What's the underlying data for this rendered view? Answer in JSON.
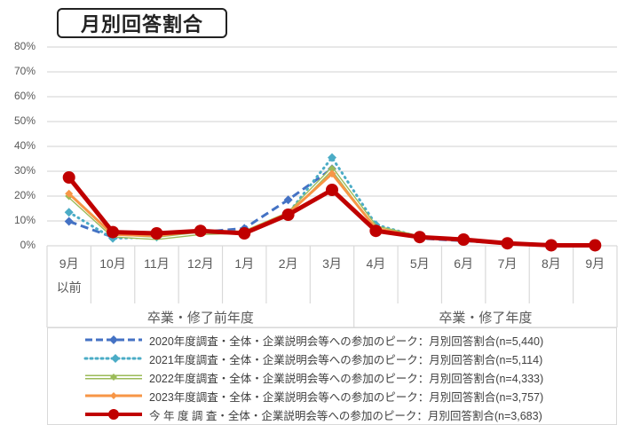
{
  "title": "月別回答割合",
  "chart_data": {
    "type": "line",
    "title": "月別回答割合",
    "xlabel": "",
    "ylabel": "",
    "ylim": [
      0,
      80
    ],
    "yticks": [
      "0%",
      "10%",
      "20%",
      "30%",
      "40%",
      "50%",
      "60%",
      "70%",
      "80%"
    ],
    "grid": true,
    "legend_position": "bottom",
    "categories": [
      "9月以前",
      "10月",
      "11月",
      "12月",
      "1月",
      "2月",
      "3月",
      "4月",
      "5月",
      "6月",
      "7月",
      "8月",
      "9月"
    ],
    "category_labels": [
      [
        "9月",
        "以前"
      ],
      [
        "10月"
      ],
      [
        "11月"
      ],
      [
        "12月"
      ],
      [
        "1月"
      ],
      [
        "2月"
      ],
      [
        "3月"
      ],
      [
        "4月"
      ],
      [
        "5月"
      ],
      [
        "6月"
      ],
      [
        "7月"
      ],
      [
        "8月"
      ],
      [
        "9月"
      ]
    ],
    "groups": [
      {
        "label": "卒業・修了前年度",
        "span": [
          0,
          6
        ]
      },
      {
        "label": "卒業・修了年度",
        "span": [
          7,
          12
        ]
      }
    ],
    "series": [
      {
        "name": "2020年度調査・全体・企業説明会等への参加のピーク：月別回答割合(n=5,440)",
        "color": "#4472C4",
        "style": "dashed",
        "marker": "diamond",
        "values": [
          9.8,
          3.5,
          4.5,
          5.5,
          7.0,
          18.5,
          31.0,
          7.0,
          3.0,
          2.0,
          1.0,
          0.3,
          0.2
        ]
      },
      {
        "name": "2021年度調査・全体・企業説明会等への参加のピーク：月別回答割合(n=5,114)",
        "color": "#4BACC6",
        "style": "dotted",
        "marker": "diamond",
        "values": [
          13.5,
          3.0,
          3.5,
          5.5,
          5.5,
          13.0,
          35.5,
          8.5,
          3.5,
          2.0,
          1.0,
          0.3,
          0.2
        ]
      },
      {
        "name": "2022年度調査・全体・企業説明会等への参加のピーク：月別回答割合(n=4,333)",
        "color": "#9BBB59",
        "style": "double",
        "marker": "diamond",
        "values": [
          20.0,
          4.0,
          3.0,
          5.0,
          5.5,
          13.0,
          31.0,
          7.5,
          3.5,
          2.5,
          1.0,
          0.3,
          0.2
        ]
      },
      {
        "name": "2023年度調査・全体・企業説明会等への参加のピーク：月別回答割合(n=3,757)",
        "color": "#F79646",
        "style": "solid",
        "marker": "diamond",
        "values": [
          21.0,
          4.5,
          4.0,
          6.0,
          5.5,
          13.0,
          29.0,
          7.0,
          3.5,
          2.5,
          1.0,
          0.3,
          0.3
        ]
      },
      {
        "name": "今年度調査・全体・企業説明会等への参加のピーク：月別回答割合(n=3,683)",
        "color": "#C00000",
        "style": "solid-thick",
        "marker": "circle",
        "values": [
          27.5,
          5.5,
          5.0,
          6.0,
          5.0,
          12.5,
          22.5,
          6.0,
          3.5,
          2.5,
          1.0,
          0.2,
          0.2
        ]
      }
    ]
  },
  "legend": [
    {
      "label": "2020年度調査・全体・企業説明会等への参加のピーク：月別回答割合(n=5,440)"
    },
    {
      "label": "2021年度調査・全体・企業説明会等への参加のピーク：月別回答割合(n=5,114)"
    },
    {
      "label": "2022年度調査・全体・企業説明会等への参加のピーク：月別回答割合(n=4,333)"
    },
    {
      "label": "2023年度調査・全体・企業説明会等への参加のピーク：月別回答割合(n=3,757)"
    },
    {
      "label": "今 年 度 調 査・全体・企業説明会等への参加のピーク：月別回答割合(n=3,683)"
    }
  ],
  "colors": {
    "grid": "#D9D9D9",
    "axis_text": "#595959"
  }
}
